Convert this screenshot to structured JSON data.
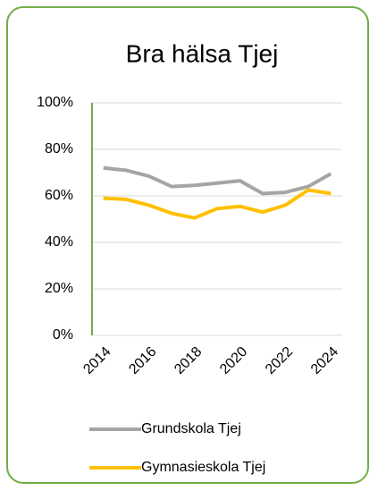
{
  "chart_data": {
    "type": "line",
    "title": "Bra hälsa Tjej",
    "categories": [
      "2014",
      null,
      "2016",
      null,
      "2018",
      null,
      "2020",
      null,
      "2022",
      null,
      "2024"
    ],
    "series": [
      {
        "name": "Grundskola Tjej",
        "color": "#a5a5a5",
        "values": [
          72,
          71,
          68.5,
          64,
          64.5,
          65.5,
          66.5,
          61,
          61.5,
          64,
          69.5
        ]
      },
      {
        "name": "Gymnasieskola Tjej",
        "color": "#ffc000",
        "values": [
          59,
          58.5,
          56,
          52.5,
          50.5,
          54.5,
          55.5,
          53,
          56,
          62.5,
          61
        ]
      }
    ],
    "ylim": [
      0,
      100
    ],
    "yticks": [
      {
        "value": 0,
        "label": "0%"
      },
      {
        "value": 20,
        "label": "20%"
      },
      {
        "value": 40,
        "label": "40%"
      },
      {
        "value": 60,
        "label": "60%"
      },
      {
        "value": 80,
        "label": "80%"
      },
      {
        "value": 100,
        "label": "100%"
      }
    ],
    "grid": true
  }
}
